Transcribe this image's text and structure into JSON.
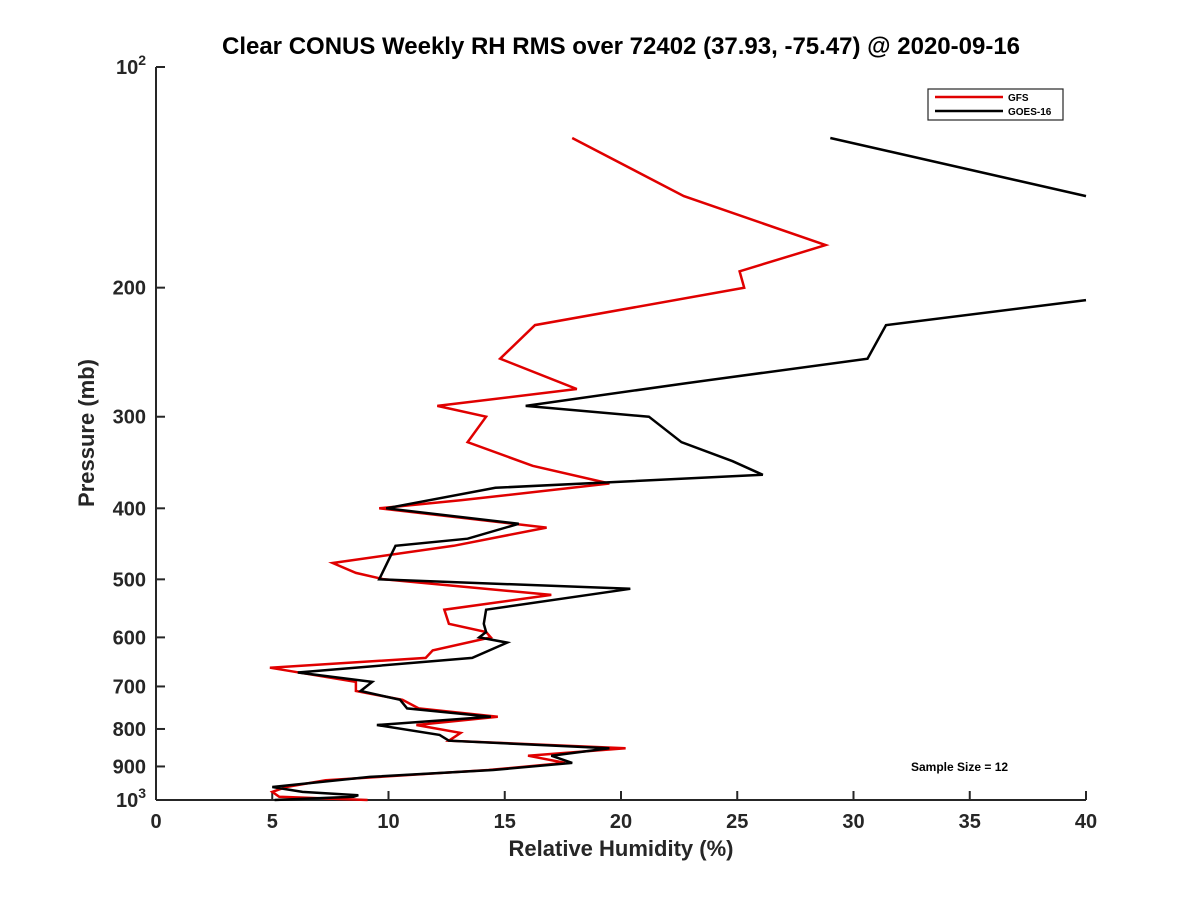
{
  "chart_data": {
    "type": "line",
    "title": "Clear CONUS Weekly RH RMS over 72402 (37.93, -75.47) @ 2020-09-16",
    "xlabel": "Relative Humidity (%)",
    "ylabel": "Pressure (mb)",
    "xlim": [
      0,
      40
    ],
    "ylim": [
      100,
      1000
    ],
    "yscale": "log",
    "y_direction": "reversed",
    "grid": false,
    "legend_position": "top-right",
    "x_ticks": [
      "0",
      "5",
      "10",
      "15",
      "20",
      "25",
      "30",
      "35",
      "40"
    ],
    "x_tick_values": [
      0,
      5,
      10,
      15,
      20,
      25,
      30,
      35,
      40
    ],
    "y_tick_values": [
      100,
      200,
      300,
      400,
      500,
      600,
      700,
      800,
      900,
      1000
    ],
    "y_ticks": [
      {
        "base": "10",
        "exp": "2"
      },
      {
        "base": "200",
        "exp": ""
      },
      {
        "base": "300",
        "exp": ""
      },
      {
        "base": "400",
        "exp": ""
      },
      {
        "base": "500",
        "exp": ""
      },
      {
        "base": "600",
        "exp": ""
      },
      {
        "base": "700",
        "exp": ""
      },
      {
        "base": "800",
        "exp": ""
      },
      {
        "base": "900",
        "exp": ""
      },
      {
        "base": "10",
        "exp": "3"
      }
    ],
    "annotation": "Sample Size = 12",
    "series": [
      {
        "name": "GFS",
        "color": "#e00000",
        "points": [
          [
            17.9,
            125
          ],
          [
            22.7,
            150
          ],
          [
            28.8,
            175
          ],
          [
            25.1,
            190
          ],
          [
            25.3,
            200
          ],
          [
            16.3,
            225
          ],
          [
            14.8,
            250
          ],
          [
            18.1,
            275
          ],
          [
            12.1,
            290
          ],
          [
            14.2,
            300
          ],
          [
            13.4,
            325
          ],
          [
            16.2,
            350
          ],
          [
            19.5,
            370
          ],
          [
            13.1,
            390
          ],
          [
            9.6,
            400
          ],
          [
            16.8,
            425
          ],
          [
            12.8,
            450
          ],
          [
            7.6,
            475
          ],
          [
            8.6,
            490
          ],
          [
            9.8,
            500
          ],
          [
            17.0,
            525
          ],
          [
            12.4,
            550
          ],
          [
            12.6,
            575
          ],
          [
            14.2,
            590
          ],
          [
            14.4,
            600
          ],
          [
            11.9,
            625
          ],
          [
            11.6,
            640
          ],
          [
            4.9,
            660
          ],
          [
            8.6,
            690
          ],
          [
            8.6,
            710
          ],
          [
            10.6,
            730
          ],
          [
            11.3,
            750
          ],
          [
            14.7,
            770
          ],
          [
            11.2,
            790
          ],
          [
            13.1,
            810
          ],
          [
            12.6,
            830
          ],
          [
            20.2,
            850
          ],
          [
            16.0,
            870
          ],
          [
            17.6,
            890
          ],
          [
            14.3,
            910
          ],
          [
            7.3,
            940
          ],
          [
            5.6,
            960
          ],
          [
            5.0,
            975
          ],
          [
            5.3,
            990
          ],
          [
            9.1,
            1000
          ]
        ]
      },
      {
        "name": "GOES-16",
        "color": "#000000",
        "points": [
          [
            29.0,
            125
          ],
          [
            40.0,
            150
          ],
          [
            null,
            null
          ],
          [
            40.0,
            208
          ],
          [
            31.4,
            225
          ],
          [
            30.6,
            250
          ],
          [
            22.8,
            270
          ],
          [
            15.9,
            290
          ],
          [
            21.2,
            300
          ],
          [
            22.6,
            325
          ],
          [
            24.8,
            345
          ],
          [
            26.1,
            360
          ],
          [
            14.6,
            375
          ],
          [
            9.9,
            400
          ],
          [
            15.6,
            420
          ],
          [
            13.4,
            440
          ],
          [
            10.3,
            450
          ],
          [
            9.6,
            500
          ],
          [
            20.4,
            515
          ],
          [
            14.2,
            550
          ],
          [
            14.1,
            575
          ],
          [
            14.2,
            590
          ],
          [
            13.9,
            600
          ],
          [
            15.1,
            610
          ],
          [
            13.6,
            640
          ],
          [
            6.1,
            670
          ],
          [
            9.3,
            690
          ],
          [
            8.8,
            710
          ],
          [
            10.5,
            730
          ],
          [
            10.8,
            750
          ],
          [
            14.4,
            770
          ],
          [
            9.5,
            790
          ],
          [
            12.2,
            815
          ],
          [
            12.6,
            830
          ],
          [
            19.5,
            850
          ],
          [
            17.0,
            870
          ],
          [
            17.9,
            890
          ],
          [
            14.5,
            910
          ],
          [
            9.2,
            930
          ],
          [
            5.0,
            960
          ],
          [
            6.3,
            975
          ],
          [
            8.7,
            985
          ],
          [
            8.5,
            990
          ],
          [
            5.1,
            1000
          ]
        ]
      }
    ]
  }
}
